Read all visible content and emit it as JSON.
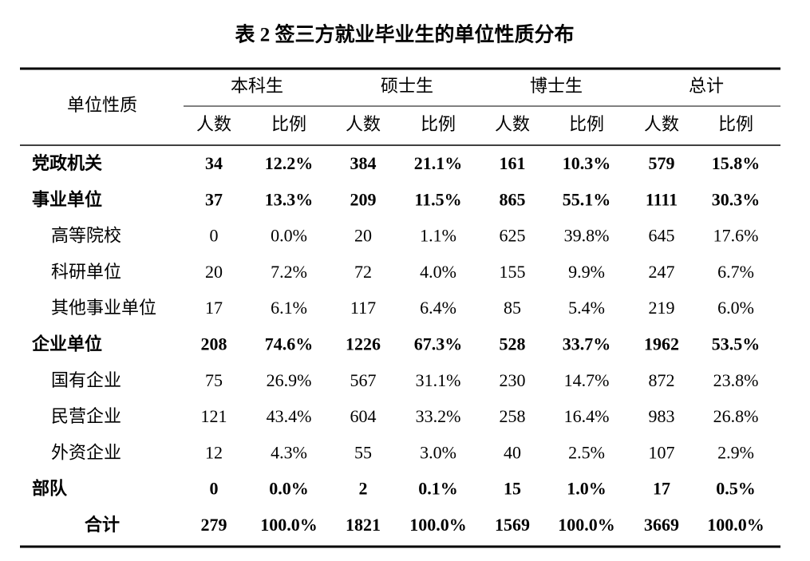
{
  "title": "表 2 签三方就业毕业生的单位性质分布",
  "table": {
    "row_header": "单位性质",
    "groups": [
      "本科生",
      "硕士生",
      "博士生",
      "总计"
    ],
    "subheaders": [
      "人数",
      "比例",
      "人数",
      "比例",
      "人数",
      "比例",
      "人数",
      "比例"
    ],
    "rows": [
      {
        "label": "党政机关",
        "cells": [
          "34",
          "12.2%",
          "384",
          "21.1%",
          "161",
          "10.3%",
          "579",
          "15.8%"
        ]
      },
      {
        "label": "事业单位",
        "cells": [
          "37",
          "13.3%",
          "209",
          "11.5%",
          "865",
          "55.1%",
          "1111",
          "30.3%"
        ]
      },
      {
        "label": "高等院校",
        "cells": [
          "0",
          "0.0%",
          "20",
          "1.1%",
          "625",
          "39.8%",
          "645",
          "17.6%"
        ]
      },
      {
        "label": "科研单位",
        "cells": [
          "20",
          "7.2%",
          "72",
          "4.0%",
          "155",
          "9.9%",
          "247",
          "6.7%"
        ]
      },
      {
        "label": "其他事业单位",
        "cells": [
          "17",
          "6.1%",
          "117",
          "6.4%",
          "85",
          "5.4%",
          "219",
          "6.0%"
        ]
      },
      {
        "label": "企业单位",
        "cells": [
          "208",
          "74.6%",
          "1226",
          "67.3%",
          "528",
          "33.7%",
          "1962",
          "53.5%"
        ]
      },
      {
        "label": "国有企业",
        "cells": [
          "75",
          "26.9%",
          "567",
          "31.1%",
          "230",
          "14.7%",
          "872",
          "23.8%"
        ]
      },
      {
        "label": "民营企业",
        "cells": [
          "121",
          "43.4%",
          "604",
          "33.2%",
          "258",
          "16.4%",
          "983",
          "26.8%"
        ]
      },
      {
        "label": "外资企业",
        "cells": [
          "12",
          "4.3%",
          "55",
          "3.0%",
          "40",
          "2.5%",
          "107",
          "2.9%"
        ]
      },
      {
        "label": "部队",
        "cells": [
          "0",
          "0.0%",
          "2",
          "0.1%",
          "15",
          "1.0%",
          "17",
          "0.5%"
        ]
      },
      {
        "label": "合计",
        "cells": [
          "279",
          "100.0%",
          "1821",
          "100.0%",
          "1569",
          "100.0%",
          "3669",
          "100.0%"
        ]
      }
    ]
  }
}
